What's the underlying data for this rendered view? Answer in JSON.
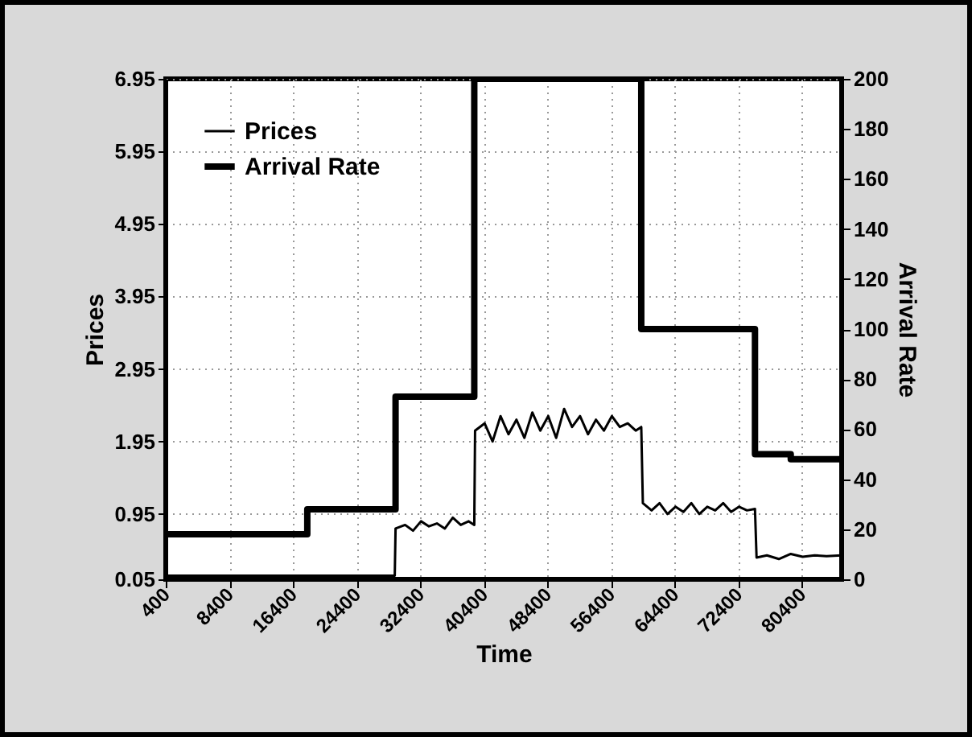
{
  "chart_data": {
    "type": "line",
    "xlabel": "Time",
    "ylabel": "Prices",
    "y2label": "Arrival Rate",
    "xlim": [
      400,
      85400
    ],
    "xticks": [
      400,
      8400,
      16400,
      24400,
      32400,
      40400,
      48400,
      56400,
      64400,
      72400,
      80400
    ],
    "ylim": [
      0.05,
      6.95
    ],
    "yticks": [
      0.05,
      0.95,
      1.95,
      2.95,
      3.95,
      4.95,
      5.95,
      6.95
    ],
    "y2lim": [
      0,
      200
    ],
    "y2ticks": [
      0,
      20,
      40,
      60,
      80,
      100,
      120,
      140,
      160,
      180,
      200
    ],
    "grid": true,
    "legend": "top left",
    "series": [
      {
        "name": "Prices",
        "color": "#000000",
        "x": [
          400,
          29200,
          29300,
          30500,
          31500,
          32500,
          33500,
          34500,
          35500,
          36500,
          37500,
          38500,
          39200,
          39300,
          40500,
          41500,
          42500,
          43500,
          44500,
          45500,
          46500,
          47500,
          48500,
          49500,
          50500,
          51500,
          52500,
          53500,
          54500,
          55500,
          56500,
          57500,
          58500,
          59500,
          60200,
          60400,
          61500,
          62500,
          63500,
          64500,
          65500,
          66500,
          67500,
          68500,
          69500,
          70500,
          71500,
          72500,
          73500,
          74500,
          74700,
          76000,
          77500,
          79000,
          80500,
          82000,
          83500,
          85400
        ],
        "values": [
          0.1,
          0.1,
          0.75,
          0.8,
          0.72,
          0.85,
          0.78,
          0.82,
          0.75,
          0.9,
          0.8,
          0.85,
          0.8,
          2.1,
          2.2,
          1.95,
          2.3,
          2.05,
          2.25,
          2.0,
          2.35,
          2.1,
          2.3,
          2.0,
          2.4,
          2.15,
          2.3,
          2.05,
          2.25,
          2.1,
          2.3,
          2.15,
          2.2,
          2.1,
          2.15,
          1.1,
          1.0,
          1.1,
          0.95,
          1.05,
          0.98,
          1.1,
          0.95,
          1.05,
          1.0,
          1.1,
          0.98,
          1.05,
          1.0,
          1.02,
          0.35,
          0.38,
          0.33,
          0.4,
          0.36,
          0.38,
          0.37,
          0.38
        ]
      },
      {
        "name": "Arrival Rate",
        "type": "step",
        "axis": "y2",
        "color": "#000000",
        "x": [
          400,
          18200,
          29300,
          39200,
          60200,
          74500,
          79000,
          85400
        ],
        "values": [
          18,
          28,
          73,
          200,
          100,
          50,
          48,
          48
        ]
      }
    ]
  }
}
